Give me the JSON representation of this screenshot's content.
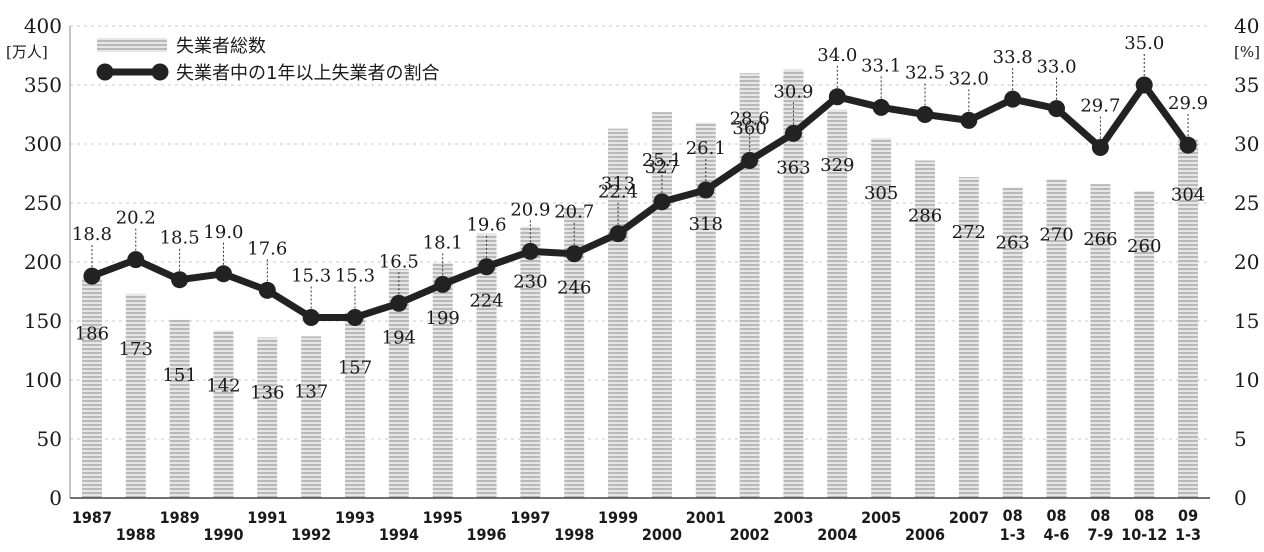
{
  "chart_data": {
    "type": "bar",
    "categories": [
      [
        "1987"
      ],
      [
        "1988"
      ],
      [
        "1989"
      ],
      [
        "1990"
      ],
      [
        "1991"
      ],
      [
        "1992"
      ],
      [
        "1993"
      ],
      [
        "1994"
      ],
      [
        "1995"
      ],
      [
        "1996"
      ],
      [
        "1997"
      ],
      [
        "1998"
      ],
      [
        "1999"
      ],
      [
        "2000"
      ],
      [
        "2001"
      ],
      [
        "2002"
      ],
      [
        "2003"
      ],
      [
        "2004"
      ],
      [
        "2005"
      ],
      [
        "2006"
      ],
      [
        "2007"
      ],
      [
        "08",
        "1-3"
      ],
      [
        "08",
        "4-6"
      ],
      [
        "08",
        "7-9"
      ],
      [
        "08",
        "10-12"
      ],
      [
        "09",
        "1-3"
      ]
    ],
    "series": [
      {
        "name": "失業者総数",
        "type": "bar",
        "axis": "left",
        "values": [
          186,
          173,
          151,
          142,
          136,
          137,
          157,
          194,
          199,
          224,
          230,
          246,
          313,
          327,
          318,
          360,
          363,
          329,
          305,
          286,
          272,
          263,
          270,
          266,
          260,
          304
        ],
        "color": "#c8c8c8"
      },
      {
        "name": "失業者中の1年以上失業者の割合",
        "type": "line",
        "axis": "right",
        "values": [
          18.8,
          20.2,
          18.5,
          19.0,
          17.6,
          15.3,
          15.3,
          16.5,
          18.1,
          19.6,
          20.9,
          20.7,
          22.4,
          25.1,
          26.1,
          28.6,
          30.9,
          34.0,
          33.1,
          32.5,
          32.0,
          33.8,
          33.0,
          29.7,
          35.0,
          29.9
        ],
        "value_labels": [
          "18.8",
          "20.2",
          "18.5",
          "19.0",
          "17.6",
          "15.3",
          "15.3",
          "16.5",
          "18.1",
          "19.6",
          "20.9",
          "20.7",
          "22.4",
          "25.1",
          "26.1",
          "28.6",
          "30.9",
          "34.0",
          "33.1",
          "32.5",
          "32.0",
          "33.8",
          "33.0",
          "29.7",
          "35.0",
          "29.9"
        ],
        "color": "#222222"
      }
    ],
    "y_left": {
      "unit": "[万人]",
      "ylim": [
        0,
        400
      ],
      "ticks": [
        "0",
        "50",
        "100",
        "150",
        "200",
        "250",
        "300",
        "350",
        "400"
      ]
    },
    "y_right": {
      "unit": "[%]",
      "ylim": [
        0,
        40
      ],
      "ticks": [
        "0",
        "5",
        "10",
        "15",
        "20",
        "25",
        "30",
        "35",
        "40"
      ]
    },
    "grid": true,
    "legend": "top-left"
  }
}
